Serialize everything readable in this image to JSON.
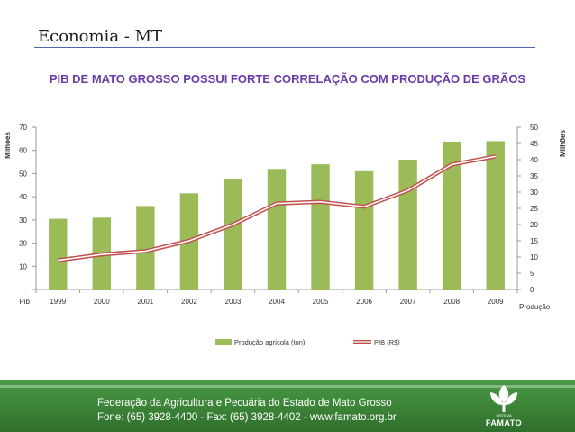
{
  "slide": {
    "title": "Economia - MT"
  },
  "chart_data": {
    "type": "bar",
    "title": "PIB DE MATO GROSSO POSSUI FORTE CORRELAÇÃO COM PRODUÇÃO DE GRÃOS",
    "categories": [
      "1999",
      "2000",
      "2001",
      "2002",
      "2003",
      "2004",
      "2005",
      "2006",
      "2007",
      "2008",
      "2009"
    ],
    "x_axis_label": "Pib",
    "y_left": {
      "label": "Milhões",
      "range": [
        0,
        70
      ],
      "ticks": [
        "-",
        "10",
        "20",
        "30",
        "40",
        "50",
        "60",
        "70"
      ]
    },
    "y_right": {
      "label": "Milhões",
      "range": [
        0,
        50
      ],
      "ticks": [
        "0",
        "5",
        "10",
        "15",
        "20",
        "25",
        "30",
        "35",
        "40",
        "45",
        "50"
      ],
      "sub_label": "Produção"
    },
    "series": [
      {
        "name": "Produção agrícola (ton)",
        "type": "bar",
        "axis": "left",
        "values": [
          30.5,
          31,
          36,
          41.5,
          47.5,
          52,
          54,
          51,
          56,
          63.5,
          64
        ],
        "color": "#9bbb59"
      },
      {
        "name": "PIB (R$)",
        "type": "line",
        "axis": "right",
        "values": [
          9,
          10.8,
          11.8,
          15,
          20,
          26.5,
          27,
          25.5,
          30.5,
          38.5,
          41
        ],
        "color": "#c0504d"
      }
    ],
    "grid": false,
    "legend_position": "bottom"
  },
  "footer": {
    "line1": "Federação da Agricultura e Pecuária do Estado de Mato Grosso",
    "line2": "Fone: (65) 3928-4400 - Fax: (65) 3928-4402 - www.famato.org.br",
    "logo_small": "SISTEMA",
    "logo_text": "FAMATO"
  },
  "colors": {
    "title_purple": "#6a3aa8",
    "footer_green": "#3f8a3a",
    "bar_green": "#9bbb59",
    "line_red": "#c0504d"
  }
}
